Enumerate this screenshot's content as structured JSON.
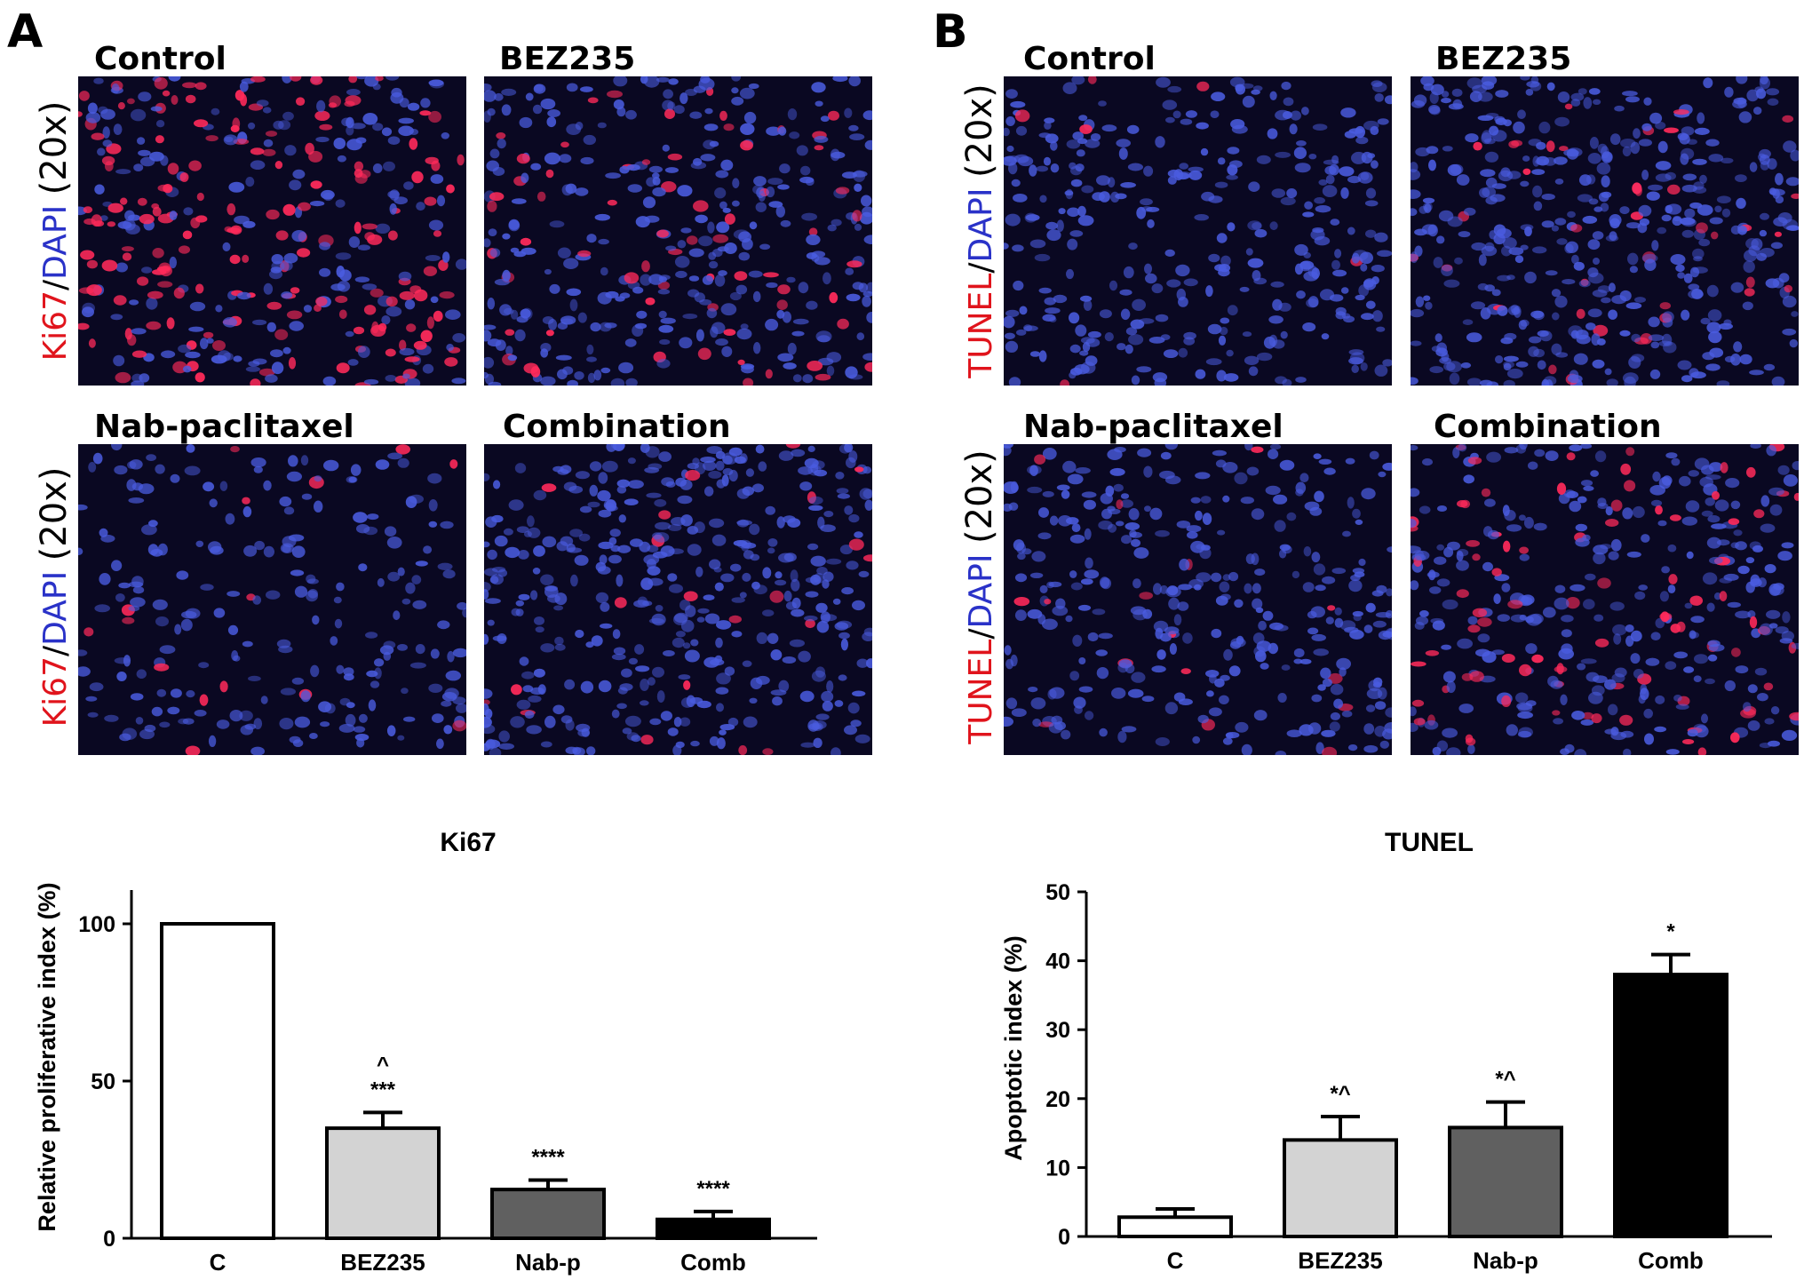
{
  "panels": {
    "A": {
      "letter": "A",
      "titles": [
        "Control",
        "BEZ235",
        "Nab-paclitaxel",
        "Combination"
      ],
      "stain": "Ki67",
      "sep": "/",
      "dapi": "DAPI",
      "mag": "(20x)"
    },
    "B": {
      "letter": "B",
      "titles": [
        "Control",
        "BEZ235",
        "Nab-paclitaxel",
        "Combination"
      ],
      "stain": "TUNEL",
      "sep": "/",
      "dapi": "DAPI",
      "mag": "(20x)"
    }
  },
  "colors": {
    "micro_bg": "#0a0822",
    "nucleus": "#4a5ce0",
    "stain_red": "#ff2a5a",
    "bar_light": "#d3d3d3",
    "bar_mid": "#606060",
    "bar_dark": "#000000",
    "bar_white": "#ffffff"
  },
  "chart_data": [
    {
      "type": "bar",
      "title": "Ki67",
      "xlabel": "",
      "ylabel": "Relative proliferative index (%)",
      "categories": [
        "C",
        "BEZ235",
        "Nab-p",
        "Comb"
      ],
      "values": [
        100,
        35,
        15.5,
        6
      ],
      "errors": [
        0,
        5,
        3,
        2.5
      ],
      "annotations": [
        "",
        "^\n***",
        "****",
        "****"
      ],
      "ylim": [
        0,
        110
      ],
      "yticks": [
        0,
        50,
        100
      ],
      "fills": [
        "#ffffff",
        "#d3d3d3",
        "#606060",
        "#000000"
      ]
    },
    {
      "type": "bar",
      "title": "TUNEL",
      "xlabel": "",
      "ylabel": "Apoptotic index (%)",
      "categories": [
        "C",
        "BEZ235",
        "Nab-p",
        "Comb"
      ],
      "values": [
        2.8,
        14,
        15.8,
        38
      ],
      "errors": [
        1.2,
        3.4,
        3.7,
        2.9
      ],
      "annotations": [
        "",
        "*^",
        "*^",
        "*"
      ],
      "ylim": [
        0,
        50
      ],
      "yticks": [
        0,
        10,
        20,
        30,
        40,
        50
      ],
      "fills": [
        "#ffffff",
        "#d3d3d3",
        "#606060",
        "#000000"
      ]
    }
  ]
}
